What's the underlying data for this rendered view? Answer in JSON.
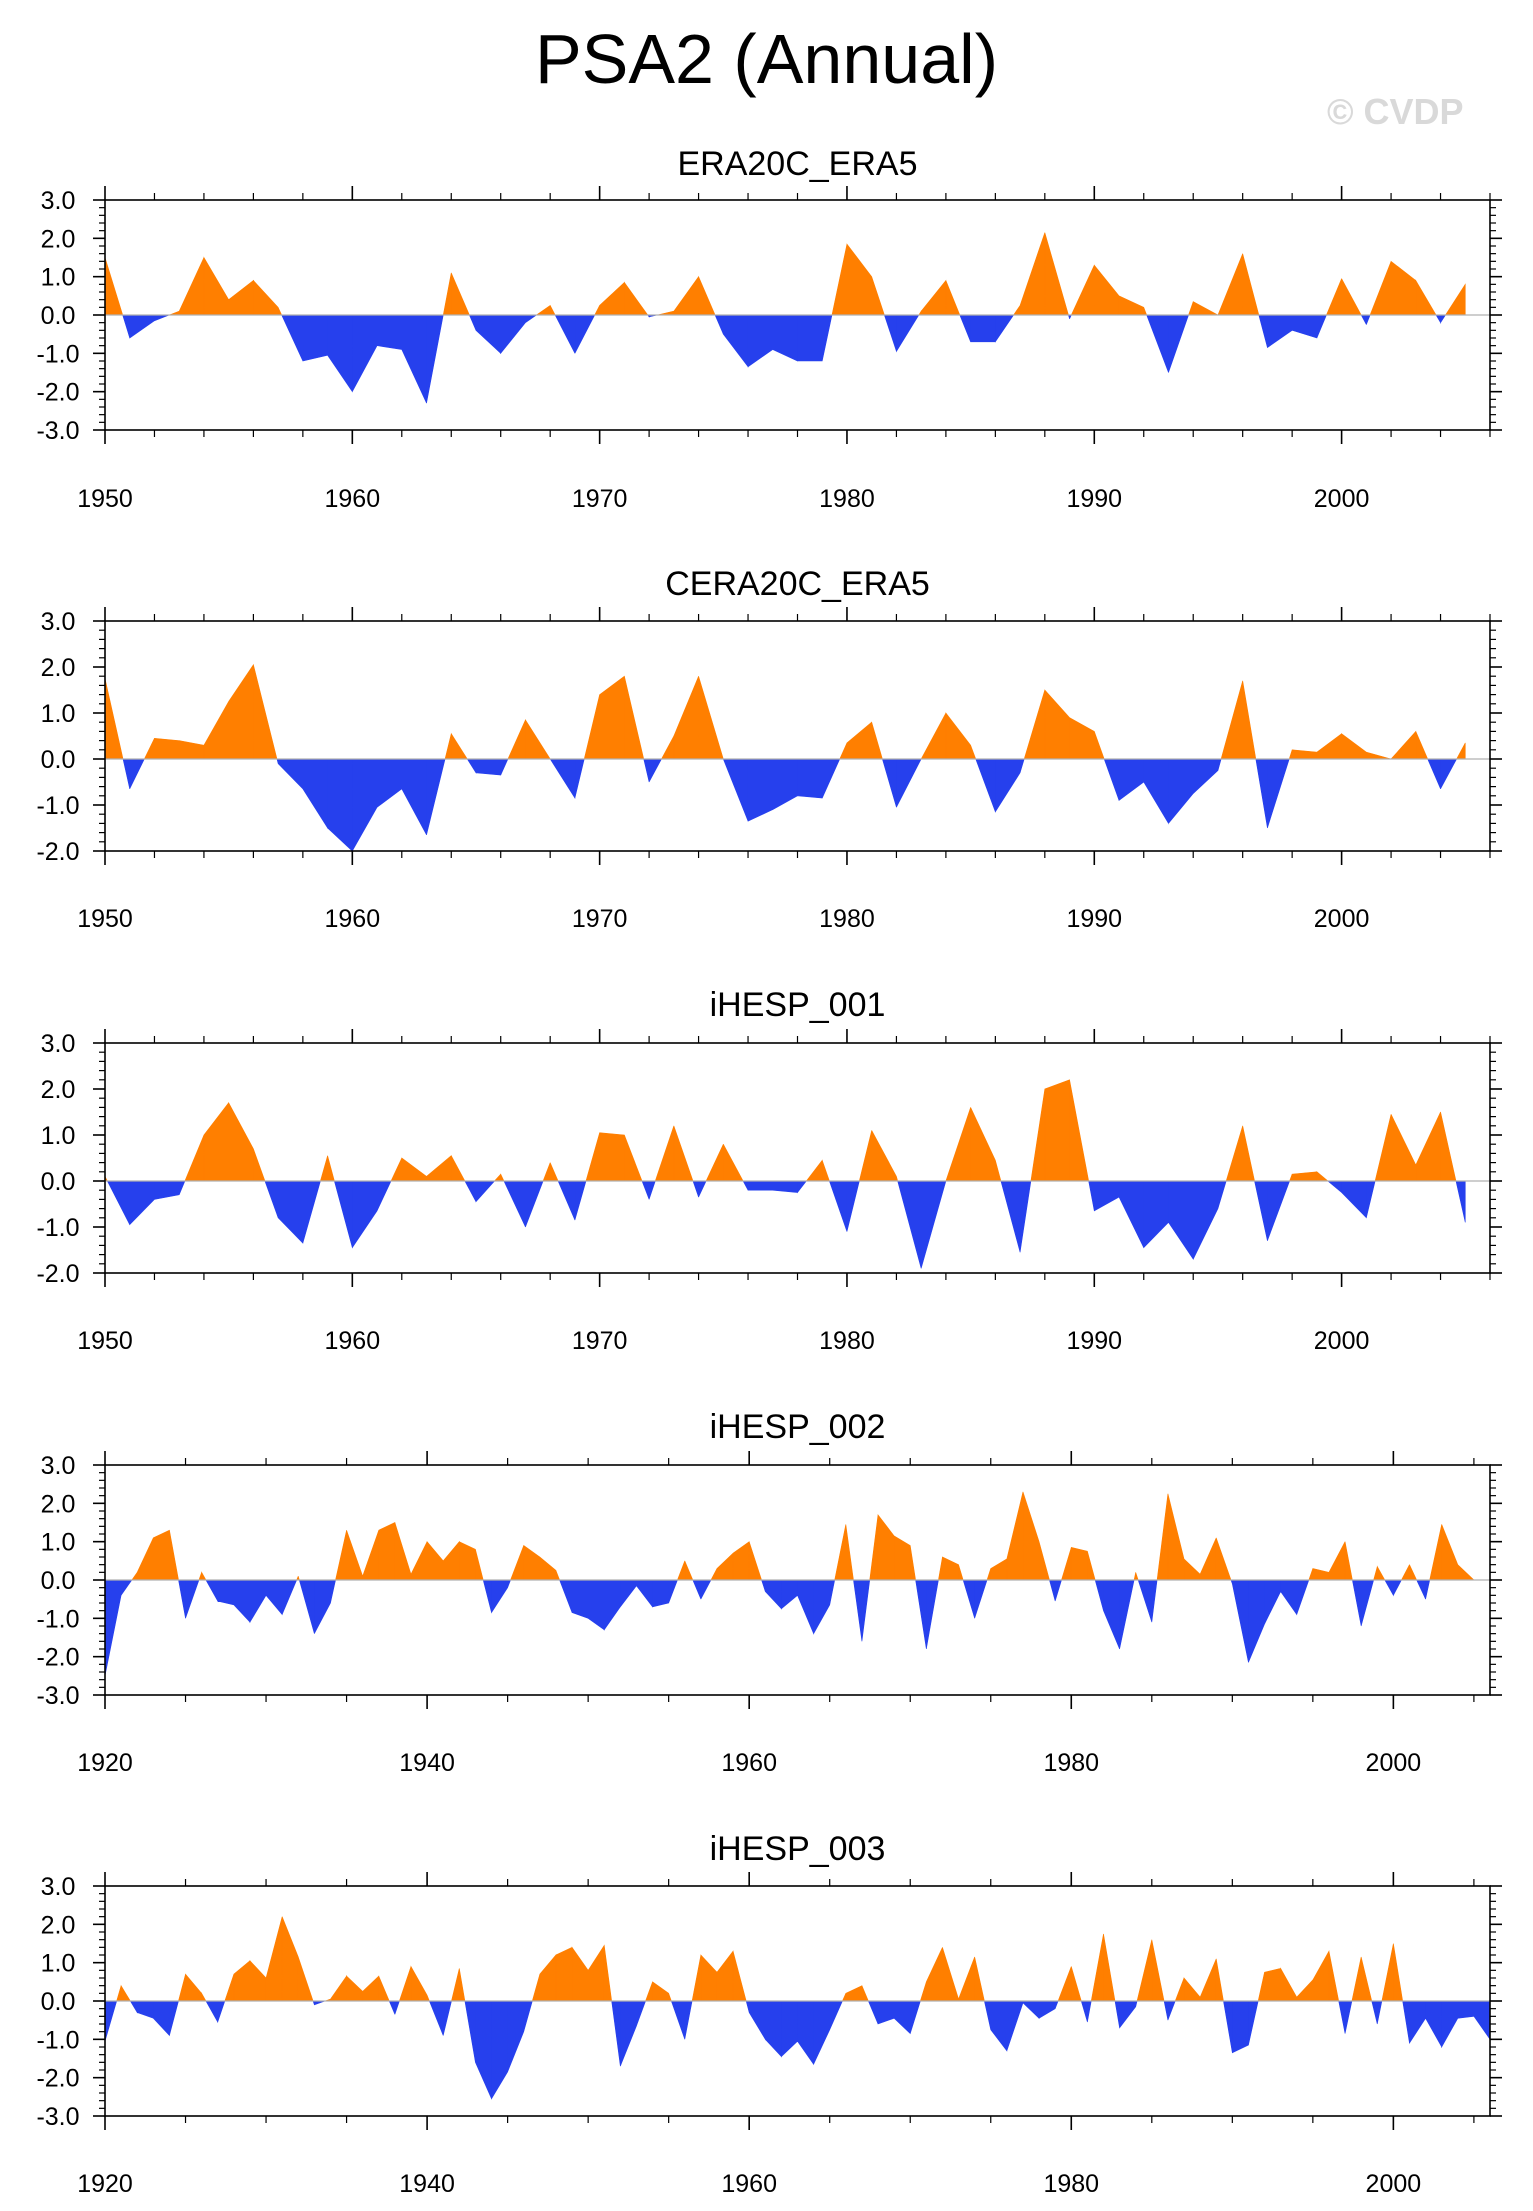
{
  "title": "PSA2 (Annual)",
  "watermark": "© CVDP",
  "colors": {
    "positive": "#ff7f00",
    "negative": "#2640ed",
    "axis": "#000000",
    "zero_line": "#b0b0b0"
  },
  "chart_data": [
    {
      "type": "area",
      "title": "ERA20C_ERA5",
      "x_start": 1950,
      "xlim": [
        1950,
        2006
      ],
      "ylim": [
        -3,
        3
      ],
      "xticks": [
        1950,
        1960,
        1970,
        1980,
        1990,
        2000
      ],
      "yticks": [
        -3,
        -2,
        -1,
        0,
        1,
        2,
        3
      ],
      "ytick_labels": [
        "-3.0",
        "-2.0",
        "-1.0",
        "0.0",
        "1.0",
        "2.0",
        "3.0"
      ],
      "values": [
        1.5,
        -0.6,
        -0.15,
        0.1,
        1.5,
        0.4,
        0.9,
        0.2,
        -1.2,
        -1.05,
        -2.0,
        -0.8,
        -0.9,
        -2.3,
        1.1,
        -0.4,
        -1.0,
        -0.2,
        0.25,
        -1.0,
        0.25,
        0.85,
        -0.05,
        0.1,
        1.0,
        -0.5,
        -1.35,
        -0.9,
        -1.2,
        -1.2,
        1.85,
        1.0,
        -0.95,
        0.1,
        0.9,
        -0.7,
        -0.7,
        0.25,
        2.15,
        -0.1,
        1.3,
        0.5,
        0.2,
        -1.5,
        0.35,
        0.0,
        1.6,
        -0.85,
        -0.4,
        -0.6,
        0.95,
        -0.25,
        1.4,
        0.9,
        -0.2,
        0.8
      ]
    },
    {
      "type": "area",
      "title": "CERA20C_ERA5",
      "x_start": 1950,
      "xlim": [
        1950,
        2006
      ],
      "ylim": [
        -2,
        3
      ],
      "xticks": [
        1950,
        1960,
        1970,
        1980,
        1990,
        2000
      ],
      "yticks": [
        -2,
        -1,
        0,
        1,
        2,
        3
      ],
      "ytick_labels": [
        "-2.0",
        "-1.0",
        "0.0",
        "1.0",
        "2.0",
        "3.0"
      ],
      "values": [
        1.75,
        -0.65,
        0.45,
        0.4,
        0.3,
        1.25,
        2.05,
        -0.1,
        -0.65,
        -1.5,
        -2.0,
        -1.05,
        -0.65,
        -1.65,
        0.55,
        -0.3,
        -0.35,
        0.85,
        0.0,
        -0.85,
        1.4,
        1.8,
        -0.5,
        0.5,
        1.8,
        0.0,
        -1.35,
        -1.1,
        -0.8,
        -0.85,
        0.35,
        0.8,
        -1.05,
        0.0,
        1.0,
        0.3,
        -1.15,
        -0.3,
        1.5,
        0.9,
        0.6,
        -0.9,
        -0.5,
        -1.4,
        -0.75,
        -0.25,
        1.7,
        -1.5,
        0.2,
        0.15,
        0.55,
        0.15,
        0.0,
        0.6,
        -0.65,
        0.35
      ]
    },
    {
      "type": "area",
      "title": "iHESP_001",
      "x_start": 1950,
      "xlim": [
        1950,
        2006
      ],
      "ylim": [
        -2,
        3
      ],
      "xticks": [
        1950,
        1960,
        1970,
        1980,
        1990,
        2000
      ],
      "yticks": [
        -2,
        -1,
        0,
        1,
        2,
        3
      ],
      "ytick_labels": [
        "-2.0",
        "-1.0",
        "0.0",
        "1.0",
        "2.0",
        "3.0"
      ],
      "values": [
        0.1,
        -0.95,
        -0.4,
        -0.3,
        1.0,
        1.7,
        0.7,
        -0.8,
        -1.35,
        0.55,
        -1.45,
        -0.65,
        0.5,
        0.1,
        0.55,
        -0.45,
        0.15,
        -1.0,
        0.4,
        -0.85,
        1.05,
        1.0,
        -0.4,
        1.2,
        -0.35,
        0.8,
        -0.2,
        -0.2,
        -0.25,
        0.45,
        -1.1,
        1.1,
        0.1,
        -1.9,
        0.0,
        1.6,
        0.45,
        -1.55,
        2.0,
        2.2,
        -0.65,
        -0.35,
        -1.45,
        -0.9,
        -1.7,
        -0.6,
        1.2,
        -1.3,
        0.15,
        0.2,
        -0.25,
        -0.8,
        1.45,
        0.35,
        1.5,
        -0.9
      ]
    },
    {
      "type": "area",
      "title": "iHESP_002",
      "x_start": 1920,
      "xlim": [
        1920,
        2006
      ],
      "ylim": [
        -3,
        3
      ],
      "xticks": [
        1920,
        1940,
        1960,
        1980,
        2000
      ],
      "yticks": [
        -3,
        -2,
        -1,
        0,
        1,
        2,
        3
      ],
      "ytick_labels": [
        "-3.0",
        "-2.0",
        "-1.0",
        "0.0",
        "1.0",
        "2.0",
        "3.0"
      ],
      "values": [
        -2.5,
        -0.4,
        0.2,
        1.1,
        1.3,
        -1.0,
        0.2,
        -0.55,
        -0.65,
        -1.1,
        -0.4,
        -0.9,
        0.1,
        -1.4,
        -0.6,
        1.3,
        0.1,
        1.3,
        1.5,
        0.15,
        1.0,
        0.5,
        1.0,
        0.8,
        -0.85,
        -0.2,
        0.9,
        0.6,
        0.25,
        -0.85,
        -1.0,
        -1.3,
        -0.7,
        -0.15,
        -0.7,
        -0.6,
        0.5,
        -0.5,
        0.3,
        0.7,
        1.0,
        -0.3,
        -0.75,
        -0.4,
        -1.4,
        -0.65,
        1.45,
        -1.6,
        1.7,
        1.15,
        0.9,
        -1.8,
        0.6,
        0.4,
        -1.0,
        0.3,
        0.55,
        2.3,
        1.0,
        -0.55,
        0.85,
        0.75,
        -0.8,
        -1.8,
        0.2,
        -1.1,
        2.25,
        0.55,
        0.15,
        1.1,
        -0.1,
        -2.15,
        -1.15,
        -0.3,
        -0.9,
        0.3,
        0.2,
        1.0,
        -1.2,
        0.35,
        -0.4,
        0.4,
        -0.5,
        1.45,
        0.4,
        0.0
      ]
    },
    {
      "type": "area",
      "title": "iHESP_003",
      "x_start": 1920,
      "xlim": [
        1920,
        2006
      ],
      "ylim": [
        -3,
        3
      ],
      "xticks": [
        1920,
        1940,
        1960,
        1980,
        2000
      ],
      "yticks": [
        -3,
        -2,
        -1,
        0,
        1,
        2,
        3
      ],
      "ytick_labels": [
        "-3.0",
        "-2.0",
        "-1.0",
        "0.0",
        "1.0",
        "2.0",
        "3.0"
      ],
      "values": [
        -1.05,
        0.4,
        -0.3,
        -0.45,
        -0.9,
        0.7,
        0.2,
        -0.55,
        0.7,
        1.05,
        0.6,
        2.2,
        1.15,
        -0.1,
        0.05,
        0.65,
        0.25,
        0.65,
        -0.35,
        0.9,
        0.15,
        -0.9,
        0.85,
        -1.6,
        -2.55,
        -1.85,
        -0.8,
        0.7,
        1.2,
        1.4,
        0.8,
        1.45,
        -1.7,
        -0.65,
        0.5,
        0.2,
        -1.0,
        1.2,
        0.75,
        1.3,
        -0.3,
        -1.0,
        -1.45,
        -1.05,
        -1.65,
        -0.75,
        0.2,
        0.4,
        -0.6,
        -0.45,
        -0.85,
        0.5,
        1.4,
        0.05,
        1.15,
        -0.75,
        -1.3,
        -0.05,
        -0.45,
        -0.2,
        0.9,
        -0.55,
        1.75,
        -0.7,
        -0.15,
        1.6,
        -0.5,
        0.6,
        0.1,
        1.1,
        -1.35,
        -1.15,
        0.75,
        0.85,
        0.1,
        0.55,
        1.3,
        -0.85,
        1.15,
        -0.6,
        1.5,
        -1.1,
        -0.45,
        -1.2,
        -0.45,
        -0.4,
        -1.0
      ]
    }
  ]
}
